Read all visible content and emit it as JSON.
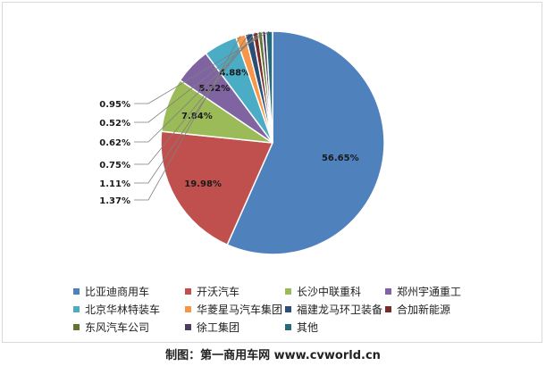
{
  "chart_data": {
    "type": "pie",
    "series": [
      {
        "name": "比亚迪商用车",
        "value": 56.65,
        "label": "56.65%",
        "color": "#4f81bd"
      },
      {
        "name": "开沃汽车",
        "value": 19.98,
        "label": "19.98%",
        "color": "#c0504d"
      },
      {
        "name": "长沙中联重科",
        "value": 7.84,
        "label": "7.84%",
        "color": "#9bbb59"
      },
      {
        "name": "郑州宇通重工",
        "value": 5.32,
        "label": "5.32%",
        "color": "#8064a2"
      },
      {
        "name": "北京华林特装车",
        "value": 4.88,
        "label": "4.88%",
        "color": "#4bacc6"
      },
      {
        "name": "华菱星马汽车集团",
        "value": 1.37,
        "label": "1.37%",
        "color": "#f79646"
      },
      {
        "name": "福建龙马环卫装备",
        "value": 1.11,
        "label": "1.11%",
        "color": "#2c4d75"
      },
      {
        "name": "合加新能源",
        "value": 0.75,
        "label": "0.75%",
        "color": "#772c2a"
      },
      {
        "name": "东风汽车公司",
        "value": 0.62,
        "label": "0.62%",
        "color": "#5f7530"
      },
      {
        "name": "徐工集团",
        "value": 0.52,
        "label": "0.52%",
        "color": "#4d3b62"
      },
      {
        "name": "其他",
        "value": 0.95,
        "label": "0.95%",
        "color": "#276a7c"
      }
    ],
    "legend_position": "bottom"
  },
  "credit": "制图：第一商用车网 www.cvworld.cn"
}
